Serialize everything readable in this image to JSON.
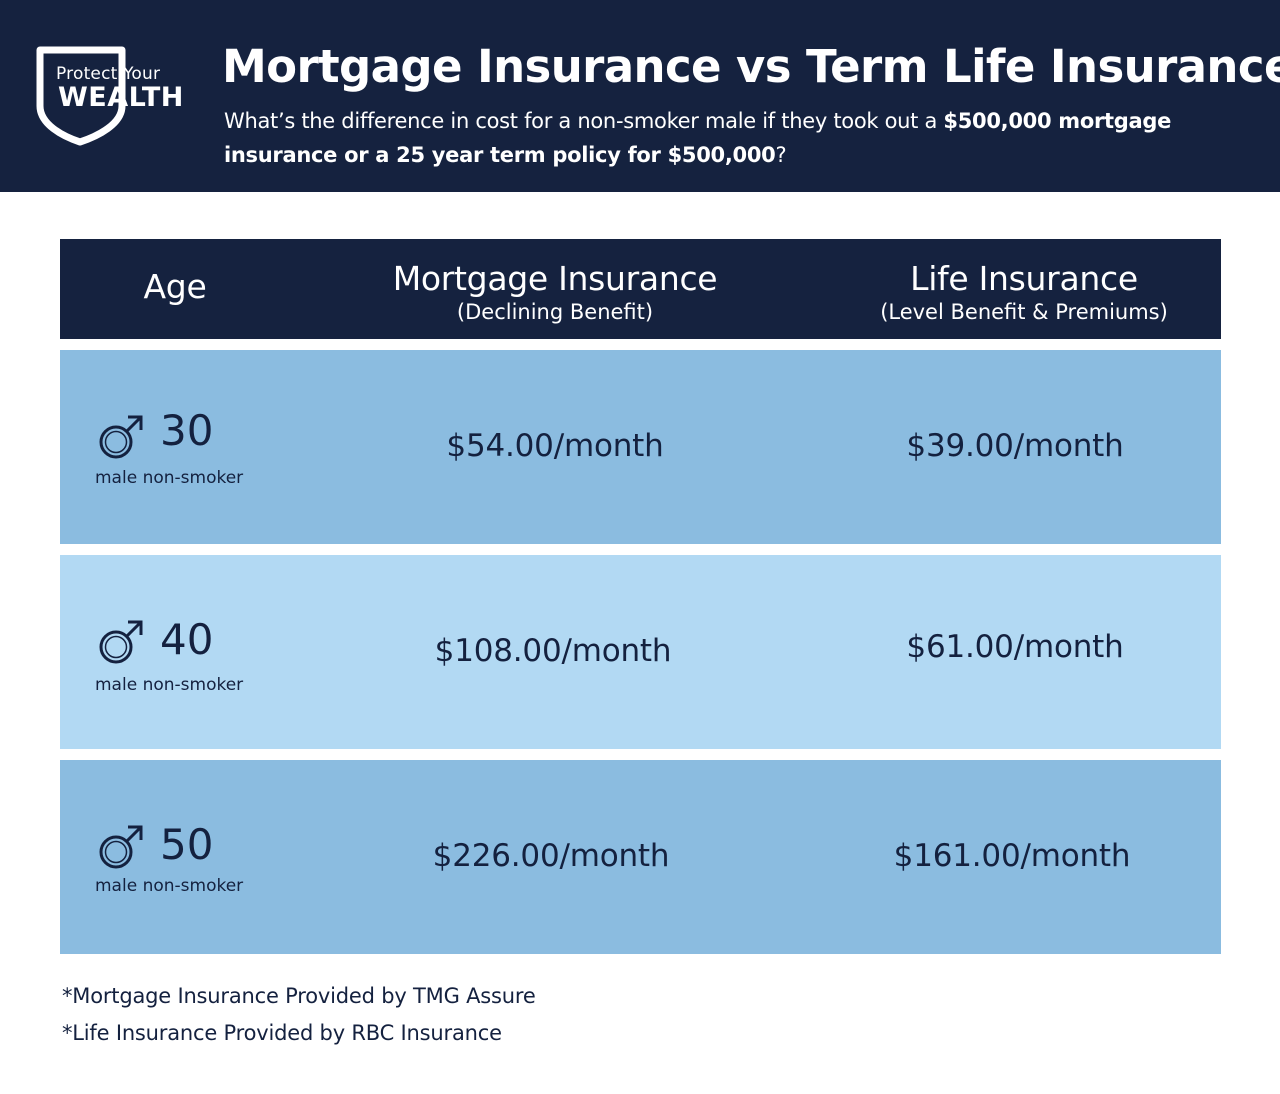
{
  "logo": {
    "line1": "Protect Your",
    "line2": "WEALTH"
  },
  "header": {
    "title": "Mortgage Insurance vs Term Life Insurance",
    "subtitle_part1": "What’s the  difference in cost for a non-smoker male if they took out a ",
    "subtitle_bold1": "$500,000 mortgage insurance or a 25 year term policy for $500,000",
    "subtitle_part2": "?"
  },
  "colors": {
    "navy": "#15223f",
    "row_dark": "#8bbce0",
    "row_light": "#b2d9f3",
    "text": "#14213f"
  },
  "chart_data": {
    "type": "table",
    "columns": [
      {
        "title": "Age",
        "subtitle": ""
      },
      {
        "title": "Mortgage Insurance",
        "subtitle": "(Declining Benefit)"
      },
      {
        "title": "Life Insurance",
        "subtitle": "(Level Benefit & Premiums)"
      }
    ],
    "rows": [
      {
        "icon": "male-symbol-icon",
        "age": "30",
        "label": "male non-smoker",
        "mortgage": "$54.00/month",
        "life": "$39.00/month"
      },
      {
        "icon": "male-symbol-icon",
        "age": "40",
        "label": "male non-smoker",
        "mortgage": "$108.00/month",
        "life": "$61.00/month"
      },
      {
        "icon": "male-symbol-icon",
        "age": "50",
        "label": "male non-smoker",
        "mortgage": "$226.00/month",
        "life": "$161.00/month"
      }
    ],
    "mortgage_values": [
      54.0,
      108.0,
      226.0
    ],
    "life_values": [
      39.0,
      61.0,
      161.0
    ]
  },
  "footnotes": [
    "*Mortgage Insurance Provided by TMG Assure",
    "*Life Insurance Provided by RBC Insurance"
  ]
}
